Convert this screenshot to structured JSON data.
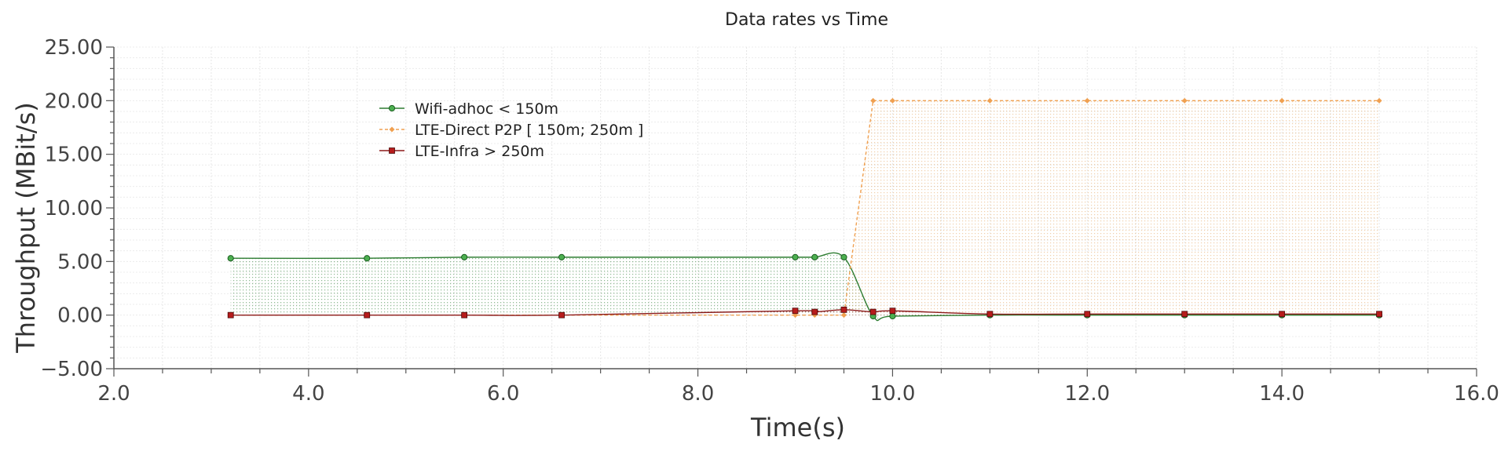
{
  "chart_data": {
    "type": "line",
    "title": "Data rates vs Time",
    "xlabel": "Time(s)",
    "ylabel": "Throughput (MBit/s)",
    "xlim": [
      2.0,
      16.0
    ],
    "ylim": [
      -5.0,
      25.0
    ],
    "x_ticks": [
      "2.0",
      "4.0",
      "6.0",
      "8.0",
      "10.0",
      "12.0",
      "14.0",
      "16.0"
    ],
    "y_ticks": [
      "−5.00",
      "0.00",
      "5.00",
      "10.00",
      "15.00",
      "20.00",
      "25.00"
    ],
    "grid": true,
    "legend_position": "upper-left",
    "series": [
      {
        "name": "Wifi-adhoc < 150m",
        "color": "#2e7d32",
        "marker": "circle",
        "line_style": "solid",
        "fill": "dotted",
        "x": [
          3.2,
          4.6,
          5.6,
          6.6,
          9.0,
          9.2,
          9.5,
          9.8,
          10.0,
          11.0,
          12.0,
          13.0,
          14.0,
          15.0
        ],
        "y": [
          5.3,
          5.3,
          5.4,
          5.4,
          5.4,
          5.4,
          5.4,
          -0.1,
          -0.1,
          0.0,
          0.0,
          0.0,
          0.0,
          0.0
        ]
      },
      {
        "name": "LTE-Direct P2P [ 150m; 250m ]",
        "color": "#f0a050",
        "marker": "diamond",
        "line_style": "dashed",
        "fill": "dotted",
        "x": [
          3.2,
          4.6,
          5.6,
          6.6,
          9.0,
          9.2,
          9.5,
          9.8,
          10.0,
          11.0,
          12.0,
          13.0,
          14.0,
          15.0
        ],
        "y": [
          0.0,
          0.0,
          0.0,
          0.0,
          0.0,
          0.0,
          0.0,
          20.0,
          20.0,
          20.0,
          20.0,
          20.0,
          20.0,
          20.0
        ]
      },
      {
        "name": "LTE-Infra   > 250m",
        "color": "#8b1a1a",
        "marker": "square",
        "line_style": "solid",
        "fill": "dotted",
        "x": [
          3.2,
          4.6,
          5.6,
          6.6,
          9.0,
          9.2,
          9.5,
          9.8,
          10.0,
          11.0,
          12.0,
          13.0,
          14.0,
          15.0
        ],
        "y": [
          0.0,
          0.0,
          0.0,
          0.0,
          0.4,
          0.3,
          0.5,
          0.3,
          0.4,
          0.1,
          0.1,
          0.1,
          0.1,
          0.1
        ]
      }
    ]
  }
}
